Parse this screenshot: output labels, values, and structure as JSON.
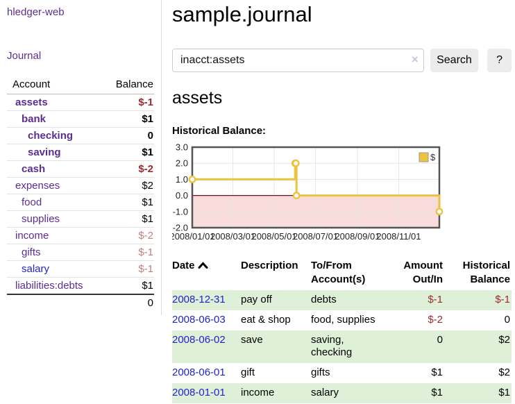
{
  "sidebar": {
    "app_title": "hledger-web",
    "nav_journal": "Journal",
    "accounts_table": {
      "headers": {
        "account": "Account",
        "balance": "Balance"
      },
      "rows": [
        {
          "account": "assets",
          "balance": "$-1",
          "indent": 0,
          "bold": true,
          "balance_style": "neg",
          "link_style": "purple"
        },
        {
          "account": "bank",
          "balance": "$1",
          "indent": 1,
          "bold": true,
          "balance_style": "pos",
          "link_style": "purple"
        },
        {
          "account": "checking",
          "balance": "0",
          "indent": 2,
          "bold": true,
          "balance_style": "pos",
          "link_style": "purple"
        },
        {
          "account": "saving",
          "balance": "$1",
          "indent": 2,
          "bold": true,
          "balance_style": "pos",
          "link_style": "purple"
        },
        {
          "account": "cash",
          "balance": "$-2",
          "indent": 1,
          "bold": true,
          "balance_style": "neg",
          "link_style": "purple"
        },
        {
          "account": "expenses",
          "balance": "$2",
          "indent": 0,
          "bold": false,
          "balance_style": "pos",
          "link_style": "purple"
        },
        {
          "account": "food",
          "balance": "$1",
          "indent": 1,
          "bold": false,
          "balance_style": "pos",
          "link_style": "purple"
        },
        {
          "account": "supplies",
          "balance": "$1",
          "indent": 1,
          "bold": false,
          "balance_style": "pos",
          "link_style": "purple"
        },
        {
          "account": "income",
          "balance": "$-2",
          "indent": 0,
          "bold": false,
          "balance_style": "negsoft",
          "link_style": "purple"
        },
        {
          "account": "gifts",
          "balance": "$-1",
          "indent": 1,
          "bold": false,
          "balance_style": "negsoft",
          "link_style": "purple"
        },
        {
          "account": "salary",
          "balance": "$-1",
          "indent": 1,
          "bold": false,
          "balance_style": "negsoft",
          "link_style": "blue"
        },
        {
          "account": "liabilities:debts",
          "balance": "$1",
          "indent": 0,
          "bold": false,
          "balance_style": "pos",
          "link_style": "purple"
        }
      ],
      "total": "0"
    }
  },
  "header": {
    "title": "sample.journal"
  },
  "search": {
    "value": "inacct:assets",
    "clear_icon": "×",
    "button_label": "Search",
    "help_label": "?"
  },
  "account_page": {
    "title": "assets",
    "chart_label": "Historical Balance:"
  },
  "chart_data": {
    "type": "line",
    "step": true,
    "title": "Historical Balance:",
    "series": [
      {
        "name": "$",
        "color": "#edc240",
        "points": [
          [
            "2008-01-01",
            1
          ],
          [
            "2008-06-01",
            2
          ],
          [
            "2008-06-02",
            2
          ],
          [
            "2008-06-03",
            0
          ],
          [
            "2008-12-31",
            -1
          ]
        ]
      }
    ],
    "xlim": [
      "2008-01-01",
      "2008-12-31"
    ],
    "ylim": [
      -2,
      3
    ],
    "y_ticks": [
      {
        "v": 3,
        "label": "3.0"
      },
      {
        "v": 2,
        "label": "2.0"
      },
      {
        "v": 1,
        "label": "1.0"
      },
      {
        "v": 0,
        "label": "0.0"
      },
      {
        "v": -1,
        "label": "-1.0"
      },
      {
        "v": -2,
        "label": "-2.0"
      }
    ],
    "x_ticks": [
      {
        "date": "2008-01-01",
        "label": "2008/01/01"
      },
      {
        "date": "2008-03-01",
        "label": "2008/03/01"
      },
      {
        "date": "2008-05-01",
        "label": "2008/05/01"
      },
      {
        "date": "2008-07-01",
        "label": "2008/07/01"
      },
      {
        "date": "2008-09-01",
        "label": "2008/09/01"
      },
      {
        "date": "2008-11-01",
        "label": "2008/11/01"
      }
    ],
    "legend": {
      "label": "$",
      "position": "top-right"
    },
    "grid": true,
    "colors": {
      "grid": "#e5e5e5",
      "border": "#545454",
      "zero_line": "#7f0d0d",
      "negative_region": "#f8dcdc",
      "marker_fill": "#ffffff"
    }
  },
  "register_table": {
    "headers": [
      {
        "label": "Date",
        "align": "left",
        "sort": "asc"
      },
      {
        "label": "Description",
        "align": "left"
      },
      {
        "label": "To/From Account(s)",
        "align": "left"
      },
      {
        "label": "Amount Out/In",
        "align": "right"
      },
      {
        "label": "Historical Balance",
        "align": "right"
      }
    ],
    "rows": [
      {
        "date": "2008-12-31",
        "description": "pay off",
        "accounts": "debts",
        "amount": "$-1",
        "amount_neg": true,
        "balance": "$-1",
        "balance_neg": true,
        "stripe": true
      },
      {
        "date": "2008-06-03",
        "description": "eat & shop",
        "accounts": "food, supplies",
        "amount": "$-2",
        "amount_neg": true,
        "balance": "0",
        "balance_neg": false,
        "stripe": false
      },
      {
        "date": "2008-06-02",
        "description": "save",
        "accounts": "saving, checking",
        "amount": "0",
        "amount_neg": false,
        "balance": "$2",
        "balance_neg": false,
        "stripe": true
      },
      {
        "date": "2008-06-01",
        "description": "gift",
        "accounts": "gifts",
        "amount": "$1",
        "amount_neg": false,
        "balance": "$2",
        "balance_neg": false,
        "stripe": false
      },
      {
        "date": "2008-01-01",
        "description": "income",
        "accounts": "salary",
        "amount": "$1",
        "amount_neg": false,
        "balance": "$1",
        "balance_neg": false,
        "stripe": true
      }
    ]
  },
  "colors": {
    "link_purple": "#5c2d91",
    "link_blue": "#2222cc",
    "negative_strong": "#9e2a2b",
    "negative_soft": "#bc7f7f",
    "stripe_green": "#dff0d8",
    "button_bg": "#ececec"
  }
}
